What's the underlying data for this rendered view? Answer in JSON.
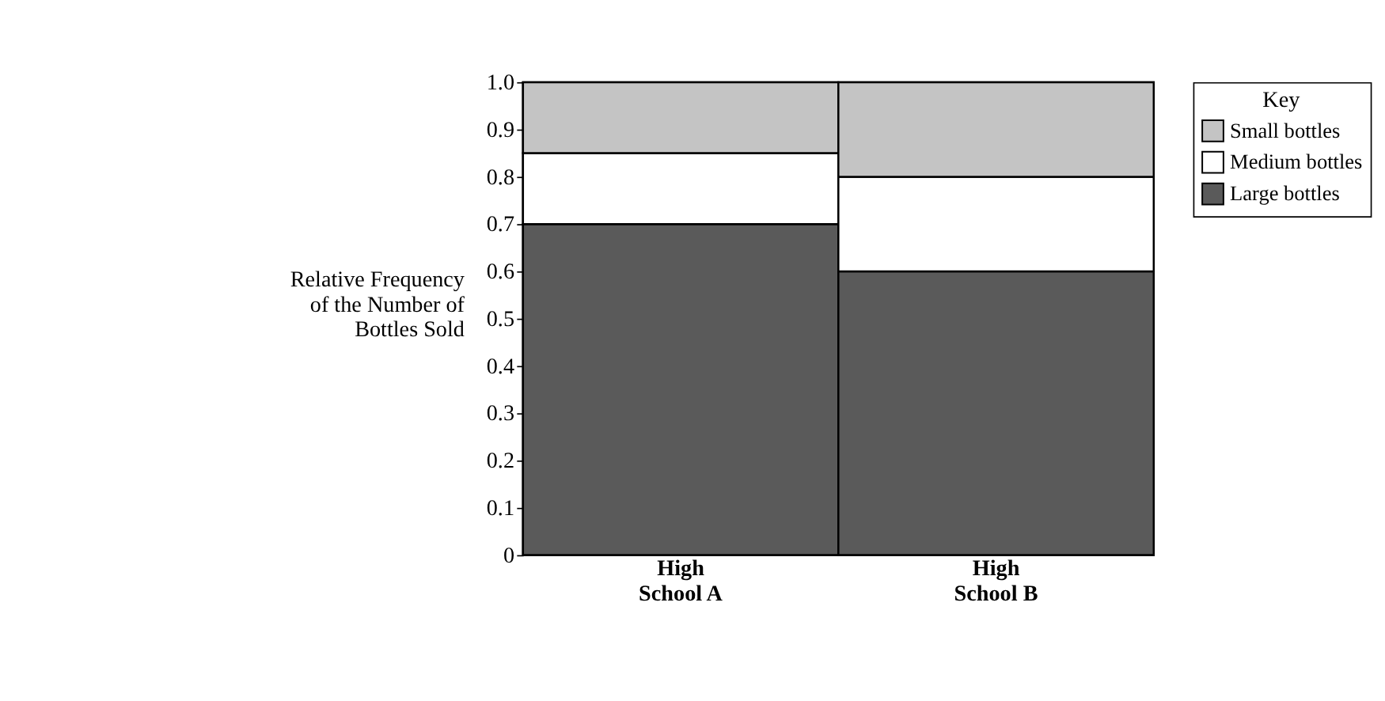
{
  "chart_data": {
    "type": "bar",
    "stacked": true,
    "ylabel": "Relative Frequency of the Number of Bottles Sold",
    "legend_title": "Key",
    "legend": "right",
    "categories": [
      "High School A",
      "High School B"
    ],
    "series": [
      {
        "name": "Large bottles",
        "color": "#5a5a5a",
        "values": [
          0.7,
          0.6
        ]
      },
      {
        "name": "Medium bottles",
        "color": "#ffffff",
        "values": [
          0.15,
          0.2
        ]
      },
      {
        "name": "Small bottles",
        "color": "#c4c4c4",
        "values": [
          0.15,
          0.2
        ]
      }
    ],
    "ylim": [
      0,
      1
    ],
    "yticks": [
      0,
      0.1,
      0.2,
      0.3,
      0.4,
      0.5,
      0.6,
      0.7,
      0.8,
      0.9,
      {
        "value": 1,
        "label": "1.0"
      }
    ],
    "grid": false
  }
}
